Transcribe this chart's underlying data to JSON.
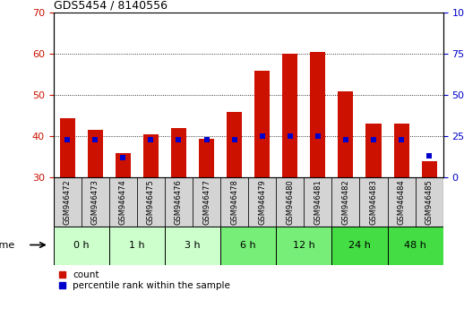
{
  "title": "GDS5454 / 8140556",
  "samples": [
    "GSM946472",
    "GSM946473",
    "GSM946474",
    "GSM946475",
    "GSM946476",
    "GSM946477",
    "GSM946478",
    "GSM946479",
    "GSM946480",
    "GSM946481",
    "GSM946482",
    "GSM946483",
    "GSM946484",
    "GSM946485"
  ],
  "count_values": [
    44.5,
    41.5,
    36.0,
    40.5,
    42.0,
    39.5,
    46.0,
    56.0,
    60.0,
    60.5,
    51.0,
    43.0,
    43.0,
    34.0
  ],
  "percentile_values": [
    23,
    23,
    12,
    23,
    23,
    23,
    23,
    25,
    25,
    25,
    23,
    23,
    23,
    13
  ],
  "count_baseline": 30,
  "time_groups": [
    {
      "label": "0 h",
      "start": 0,
      "end": 2,
      "color": "#ccffcc"
    },
    {
      "label": "1 h",
      "start": 2,
      "end": 4,
      "color": "#ccffcc"
    },
    {
      "label": "3 h",
      "start": 4,
      "end": 6,
      "color": "#ccffcc"
    },
    {
      "label": "6 h",
      "start": 6,
      "end": 8,
      "color": "#77ee77"
    },
    {
      "label": "12 h",
      "start": 8,
      "end": 10,
      "color": "#77ee77"
    },
    {
      "label": "24 h",
      "start": 10,
      "end": 12,
      "color": "#44dd44"
    },
    {
      "label": "48 h",
      "start": 12,
      "end": 14,
      "color": "#44dd44"
    }
  ],
  "ylim_left": [
    30,
    70
  ],
  "ylim_right": [
    0,
    100
  ],
  "yticks_left": [
    30,
    40,
    50,
    60,
    70
  ],
  "yticks_right": [
    0,
    25,
    50,
    75,
    100
  ],
  "bar_color": "#cc1100",
  "percentile_color": "#0000cc",
  "background_color": "#ffffff",
  "grid_color": "#000000",
  "bar_width": 0.55,
  "tick_label_color_left": "#cc1100",
  "tick_label_color_right": "#0000cc",
  "xlabel_time": "time",
  "legend_count": "count",
  "legend_percentile": "percentile rank within the sample",
  "sample_cell_color": "#d4d4d4"
}
